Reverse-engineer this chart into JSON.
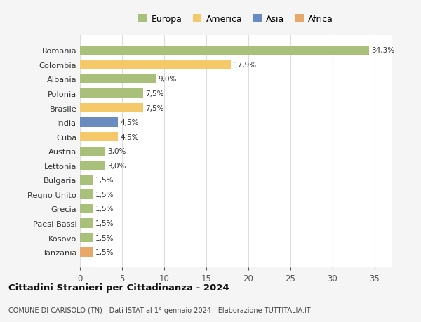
{
  "categories": [
    "Romania",
    "Colombia",
    "Albania",
    "Polonia",
    "Brasile",
    "India",
    "Cuba",
    "Austria",
    "Lettonia",
    "Bulgaria",
    "Regno Unito",
    "Grecia",
    "Paesi Bassi",
    "Kosovo",
    "Tanzania"
  ],
  "values": [
    34.3,
    17.9,
    9.0,
    7.5,
    7.5,
    4.5,
    4.5,
    3.0,
    3.0,
    1.5,
    1.5,
    1.5,
    1.5,
    1.5,
    1.5
  ],
  "labels": [
    "34,3%",
    "17,9%",
    "9,0%",
    "7,5%",
    "7,5%",
    "4,5%",
    "4,5%",
    "3,0%",
    "3,0%",
    "1,5%",
    "1,5%",
    "1,5%",
    "1,5%",
    "1,5%",
    "1,5%"
  ],
  "colors": [
    "#a8c07a",
    "#f5c96a",
    "#a8c07a",
    "#a8c07a",
    "#f5c96a",
    "#6a8bbf",
    "#f5c96a",
    "#a8c07a",
    "#a8c07a",
    "#a8c07a",
    "#a8c07a",
    "#a8c07a",
    "#a8c07a",
    "#a8c07a",
    "#e8a86a"
  ],
  "legend_labels": [
    "Europa",
    "America",
    "Asia",
    "Africa"
  ],
  "legend_colors": [
    "#a8c07a",
    "#f5c96a",
    "#6a8bbf",
    "#e8a86a"
  ],
  "title": "Cittadini Stranieri per Cittadinanza - 2024",
  "subtitle": "COMUNE DI CARISOLO (TN) - Dati ISTAT al 1° gennaio 2024 - Elaborazione TUTTITALIA.IT",
  "xlim": [
    0,
    37
  ],
  "xticks": [
    0,
    5,
    10,
    15,
    20,
    25,
    30,
    35
  ],
  "background_color": "#f5f5f5",
  "plot_bg_color": "#ffffff",
  "grid_color": "#dddddd"
}
